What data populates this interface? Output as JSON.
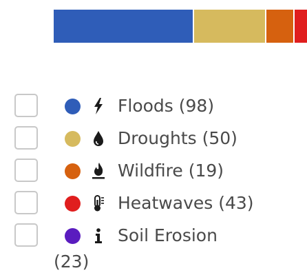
{
  "bar": {
    "segments": [
      {
        "name": "Floods",
        "value": 98,
        "color": "#2f5db8"
      },
      {
        "name": "Droughts",
        "value": 50,
        "color": "#d6ba5e"
      },
      {
        "name": "Wildfire",
        "value": 19,
        "color": "#d6610f"
      },
      {
        "name": "Heatwaves",
        "value": 43,
        "color": "#e01e1e"
      },
      {
        "name": "Soil Erosion",
        "value": 23,
        "color": "#5a1cbf"
      }
    ]
  },
  "legend": {
    "items": [
      {
        "label": "Floods (98)",
        "color": "#2f5db8",
        "icon": "bolt-icon"
      },
      {
        "label": "Droughts (50)",
        "color": "#d6ba5e",
        "icon": "water-drop-icon"
      },
      {
        "label": "Wildfire (19)",
        "color": "#d6610f",
        "icon": "fire-icon"
      },
      {
        "label": "Heatwaves (43)",
        "color": "#e01e1e",
        "icon": "thermometer-icon"
      },
      {
        "label": "Soil Erosion",
        "label_continued": "(23)",
        "color": "#5a1cbf",
        "icon": "info-icon"
      }
    ]
  }
}
